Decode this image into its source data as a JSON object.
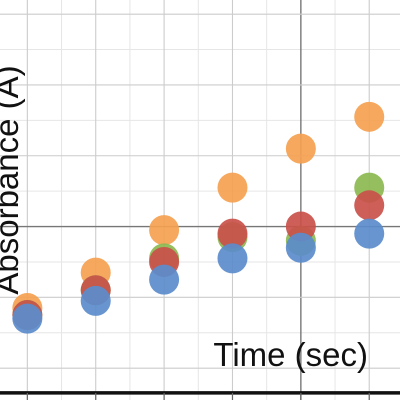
{
  "chart_data": {
    "type": "scatter",
    "title": "",
    "xlabel": "Time (sec)",
    "ylabel": "Absorbance (A)",
    "grid": true,
    "legend": "none",
    "xlim": [
      -0.4,
      5.45
    ],
    "ylim": [
      -1.45,
      4.2
    ],
    "major_x": [
      0,
      1,
      2,
      3,
      4,
      5
    ],
    "major_y": [
      -1,
      0,
      1,
      2,
      3,
      4
    ],
    "highlight_y": 1,
    "highlight_x": 4,
    "series": [
      {
        "color": "#f4a150",
        "x": [
          0,
          1,
          2,
          3,
          4,
          5
        ],
        "y": [
          -0.15,
          0.35,
          0.95,
          1.55,
          2.1,
          2.55
        ]
      },
      {
        "color": "#8cb851",
        "x": [
          0,
          1,
          2,
          3,
          4,
          5
        ],
        "y": [
          -0.25,
          0.1,
          0.55,
          0.85,
          0.8,
          1.55
        ]
      },
      {
        "color": "#c9504a",
        "x": [
          0,
          1,
          2,
          3,
          4,
          5
        ],
        "y": [
          -0.25,
          0.1,
          0.5,
          0.9,
          1.0,
          1.3
        ]
      },
      {
        "color": "#5b8ccb",
        "x": [
          0,
          1,
          2,
          3,
          4,
          5
        ],
        "y": [
          -0.3,
          -0.05,
          0.25,
          0.55,
          0.7,
          0.9
        ]
      }
    ]
  }
}
